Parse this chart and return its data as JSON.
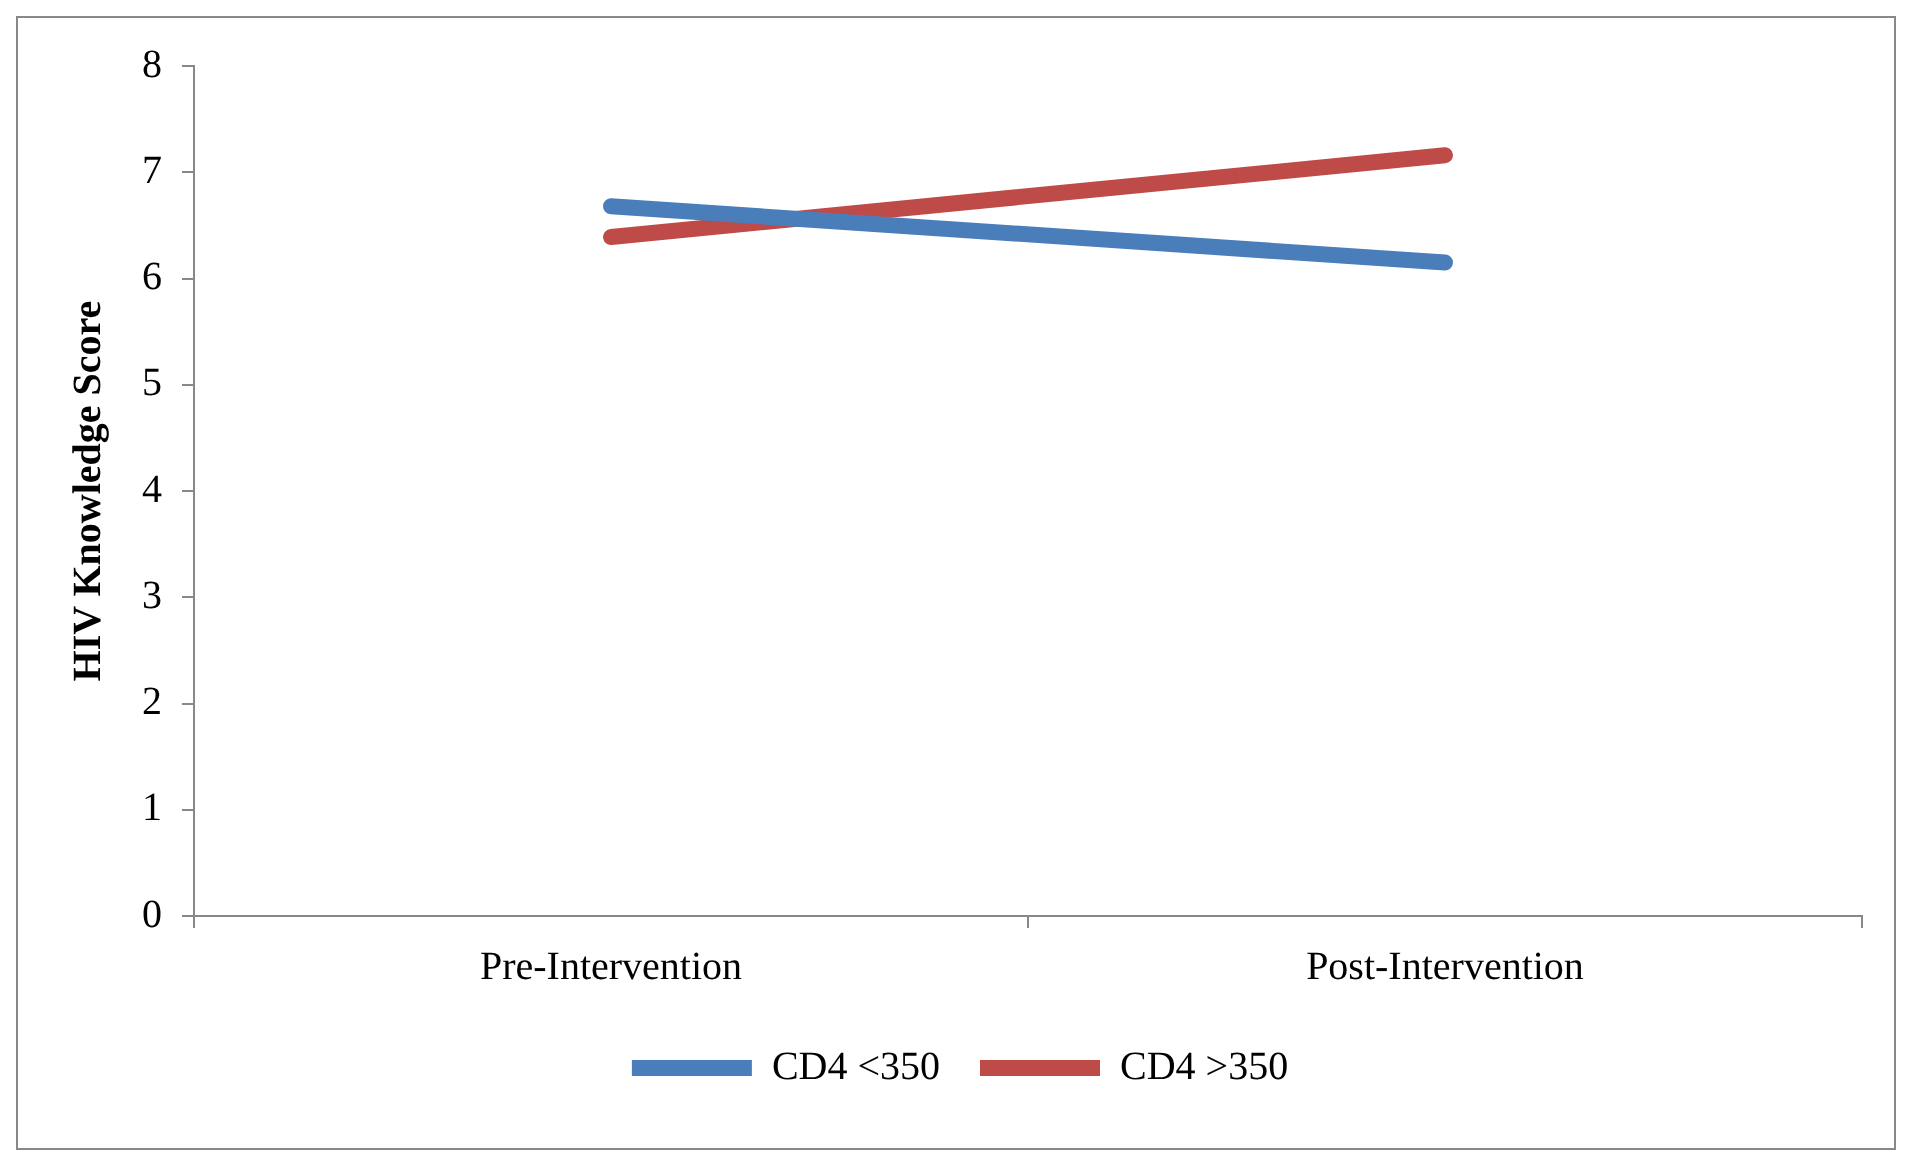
{
  "chart_data": {
    "type": "line",
    "ylabel": "HIV Knowledge Score",
    "categories": [
      "Pre-Intervention",
      "Post-Intervention"
    ],
    "series": [
      {
        "name": "CD4 <350",
        "color": "#4a7ebb",
        "values": [
          6.68,
          6.15
        ]
      },
      {
        "name": "CD4 >350",
        "color": "#be4b48",
        "values": [
          6.39,
          7.16
        ]
      }
    ],
    "ylim": [
      0,
      8
    ],
    "yticks": [
      0,
      1,
      2,
      3,
      4,
      5,
      6,
      7,
      8
    ],
    "grid": false,
    "legend": "bottom",
    "marker": "none",
    "line_style": "solid"
  }
}
